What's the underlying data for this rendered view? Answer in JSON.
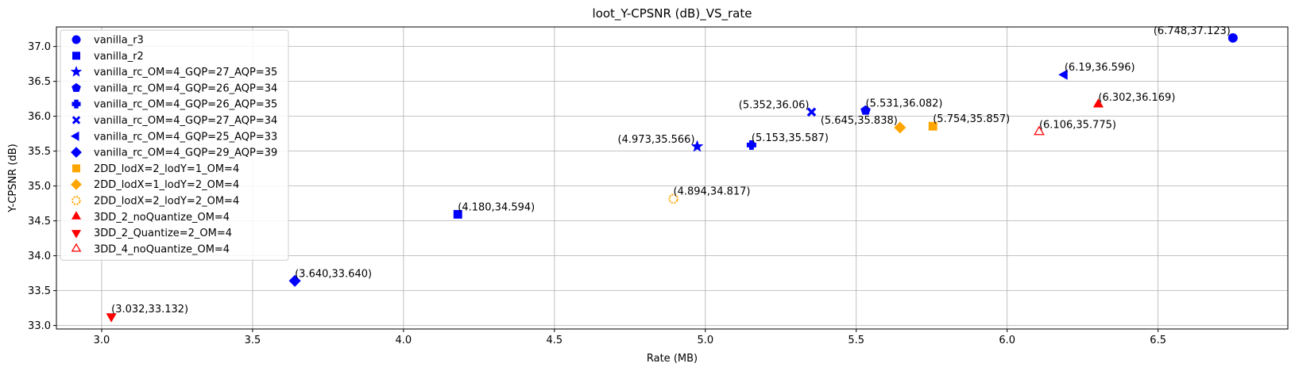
{
  "chart_data": {
    "type": "scatter",
    "title": "loot_Y-CPSNR (dB)_VS_rate",
    "xlabel": "Rate (MB)",
    "ylabel": "Y-CPSNR (dB)",
    "xlim": [
      2.85,
      6.93
    ],
    "ylim": [
      32.95,
      37.28
    ],
    "xticks": [
      "3.0",
      "3.5",
      "4.0",
      "4.5",
      "5.0",
      "5.5",
      "6.0",
      "6.5"
    ],
    "yticks": [
      "33.0",
      "33.5",
      "34.0",
      "34.5",
      "35.0",
      "35.5",
      "36.0",
      "36.5",
      "37.0"
    ],
    "grid": true,
    "legend_position": "top-left",
    "series": [
      {
        "name": "vanilla_r3",
        "color": "#0000ff",
        "marker": "circle",
        "x": 6.748,
        "y": 37.123,
        "label": "(6.748,37.123)",
        "label_side": "left"
      },
      {
        "name": "vanilla_r2",
        "color": "#0000ff",
        "marker": "square",
        "x": 4.18,
        "y": 34.594,
        "label": "(4.180,34.594)",
        "label_side": "right"
      },
      {
        "name": "vanilla_rc_OM=4_GQP=27_AQP=35",
        "color": "#0000ff",
        "marker": "star",
        "x": 4.973,
        "y": 35.566,
        "label": "(4.973,35.566)",
        "label_side": "left"
      },
      {
        "name": "vanilla_rc_OM=4_GQP=26_AQP=34",
        "color": "#0000ff",
        "marker": "pentagon",
        "x": 5.531,
        "y": 36.082,
        "label": "(5.531,36.082)",
        "label_side": "right"
      },
      {
        "name": "vanilla_rc_OM=4_GQP=26_AQP=35",
        "color": "#0000ff",
        "marker": "plus",
        "x": 5.153,
        "y": 35.587,
        "label": "(5.153,35.587)",
        "label_side": "right"
      },
      {
        "name": "vanilla_rc_OM=4_GQP=27_AQP=34",
        "color": "#0000ff",
        "marker": "x",
        "x": 5.352,
        "y": 36.06,
        "label": "(5.352,36.06)",
        "label_side": "left"
      },
      {
        "name": "vanilla_rc_OM=4_GQP=25_AQP=33",
        "color": "#0000ff",
        "marker": "triangle-left",
        "x": 6.19,
        "y": 36.596,
        "label": "(6.19,36.596)",
        "label_side": "right"
      },
      {
        "name": "vanilla_rc_OM=4_GQP=29_AQP=39",
        "color": "#0000ff",
        "marker": "diamond",
        "x": 3.64,
        "y": 33.64,
        "label": "(3.640,33.640)",
        "label_side": "right"
      },
      {
        "name": "2DD_lodX=2_lodY=1_OM=4",
        "color": "#ffa500",
        "marker": "square",
        "x": 5.754,
        "y": 35.857,
        "label": "(5.754,35.857)",
        "label_side": "right"
      },
      {
        "name": "2DD_lodX=1_lodY=2_OM=4",
        "color": "#ffa500",
        "marker": "diamond",
        "x": 5.645,
        "y": 35.838,
        "label": "(5.645,35.838)",
        "label_side": "left"
      },
      {
        "name": "2DD_lodX=2_lodY=2_OM=4",
        "color": "#ffa500",
        "marker": "octagon",
        "x": 4.894,
        "y": 34.817,
        "label": "(4.894,34.817)",
        "label_side": "right"
      },
      {
        "name": "3DD_2_noQuantize_OM=4",
        "color": "#ff0000",
        "marker": "triangle-up",
        "x": 6.302,
        "y": 36.169,
        "label": "(6.302,36.169)",
        "label_side": "right"
      },
      {
        "name": "3DD_2_Quantize=2_OM=4",
        "color": "#ff0000",
        "marker": "triangle-down",
        "x": 3.032,
        "y": 33.132,
        "label": "(3.032,33.132)",
        "label_side": "right"
      },
      {
        "name": "3DD_4_noQuantize_OM=4",
        "color": "#ff0000",
        "marker": "triangle-up-open",
        "x": 6.106,
        "y": 35.775,
        "label": "(6.106,35.775)",
        "label_side": "right"
      }
    ]
  }
}
